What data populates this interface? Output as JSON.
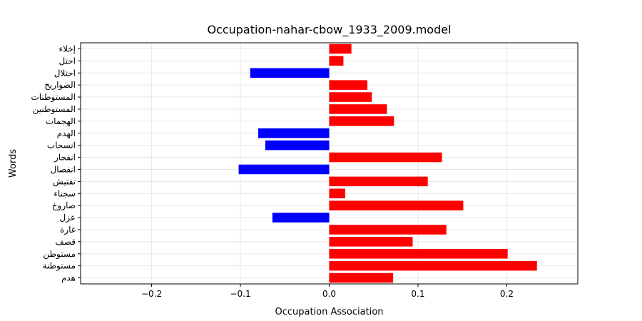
{
  "chart_data": {
    "type": "bar",
    "orientation": "horizontal",
    "title": "Occupation-nahar-cbow_1933_2009.model",
    "xlabel": "Occupation Association",
    "ylabel": "Words",
    "xlim": [
      -0.28,
      0.28
    ],
    "xticks": [
      -0.2,
      -0.1,
      0.0,
      0.1,
      0.2
    ],
    "xtick_labels": [
      "−0.2",
      "−0.1",
      "0.0",
      "0.1",
      "0.2"
    ],
    "grid": true,
    "categories": [
      "هدم",
      "مستوطنة",
      "مستوطن",
      "قصف",
      "غارة",
      "عزل",
      "صاروخ",
      "سجناء",
      "تفتيش",
      "انفصال",
      "انفجار",
      "انسحاب",
      "الهدم",
      "الهجمات",
      "المستوطنين",
      "المستوطنات",
      "الصواريخ",
      "احتلال",
      "احتل",
      "إخلاء"
    ],
    "values": [
      0.072,
      0.234,
      0.201,
      0.094,
      0.132,
      -0.064,
      0.151,
      0.018,
      0.111,
      -0.102,
      0.127,
      -0.072,
      -0.08,
      0.073,
      0.065,
      0.048,
      0.043,
      -0.089,
      0.016,
      0.025
    ],
    "colors": {
      "positive": "#ff0000",
      "negative": "#0000ff"
    }
  }
}
